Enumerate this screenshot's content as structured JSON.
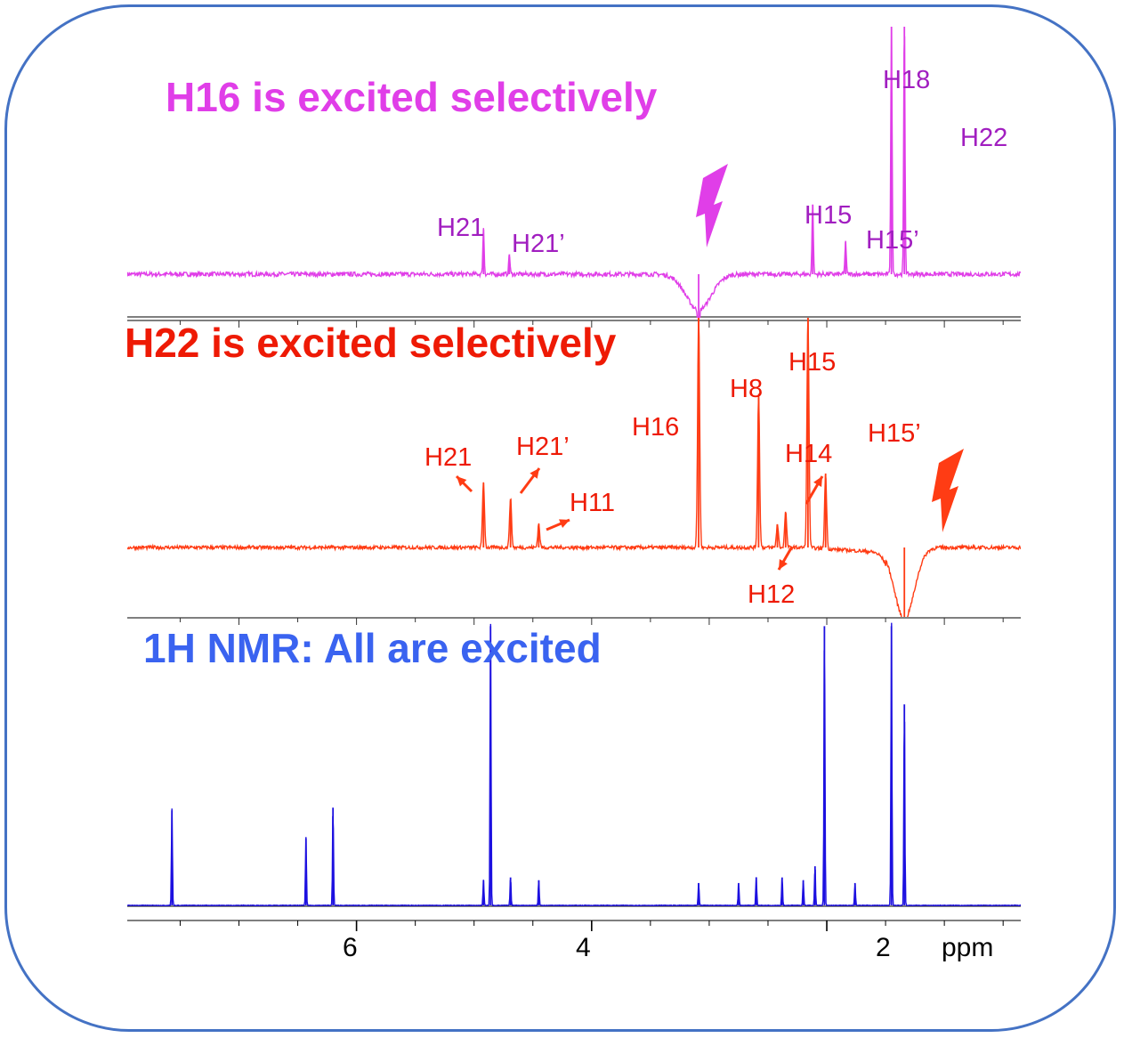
{
  "colors": {
    "frame": "#4472c4",
    "h16": "#e03ee8",
    "h16_label": "#a11ec0",
    "h22": "#ff3c14",
    "h22_label": "#ee1a05",
    "nmr": "#1d10e0",
    "nmr_title": "#3a63f0"
  },
  "panels": {
    "h16": {
      "title": "H16 is excited selectively",
      "labels": {
        "h18": "H18",
        "h22": "H22",
        "h15": "H15",
        "h15p": "H15’",
        "h21": "H21",
        "h21p": "H21’"
      }
    },
    "h22": {
      "title": "H22 is excited selectively",
      "labels": {
        "h16": "H16",
        "h8": "H8",
        "h15": "H15",
        "h15p": "H15’",
        "h14": "H14",
        "h21": "H21",
        "h21p": "H21’",
        "h11": "H11",
        "h12": "H12"
      }
    },
    "nmr": {
      "title": "1H NMR:  All are excited"
    }
  },
  "chart_data": {
    "type": "line",
    "xlabel": "ppm",
    "x_reversed": true,
    "xlim": [
      7.95,
      0.35
    ],
    "xticks": [
      {
        "value": 6,
        "label": "6"
      },
      {
        "value": 4,
        "label": "4"
      },
      {
        "value": 2,
        "label": "2"
      }
    ],
    "series": [
      {
        "name": "H16 is excited selectively",
        "peaks": [
          {
            "ppm": 1.45,
            "height": 1.0,
            "label": "H18"
          },
          {
            "ppm": 1.34,
            "height": 1.0,
            "label": "H22"
          },
          {
            "ppm": 2.12,
            "height": 0.28,
            "label": "H15"
          },
          {
            "ppm": 1.84,
            "height": 0.13,
            "label": "H15’"
          },
          {
            "ppm": 4.92,
            "height": 0.18,
            "label": "H21"
          },
          {
            "ppm": 4.7,
            "height": 0.08,
            "label": "H21’"
          },
          {
            "ppm": 3.09,
            "height": -0.22,
            "label": "irradiated H16"
          }
        ]
      },
      {
        "name": "H22 is excited selectively",
        "peaks": [
          {
            "ppm": 3.09,
            "height": 1.0,
            "label": "H16"
          },
          {
            "ppm": 2.58,
            "height": 0.65,
            "label": "H8"
          },
          {
            "ppm": 2.16,
            "height": 1.0,
            "label": "H15"
          },
          {
            "ppm": 2.01,
            "height": 0.32,
            "label": "H15’"
          },
          {
            "ppm": 2.35,
            "height": 0.15,
            "label": "H14"
          },
          {
            "ppm": 2.42,
            "height": 0.1,
            "label": "H12"
          },
          {
            "ppm": 4.92,
            "height": 0.28,
            "label": "H21"
          },
          {
            "ppm": 4.69,
            "height": 0.21,
            "label": "H21’"
          },
          {
            "ppm": 4.45,
            "height": 0.1,
            "label": "H11"
          },
          {
            "ppm": 1.34,
            "height": -0.35,
            "label": "irradiated H22"
          }
        ]
      },
      {
        "name": "1H NMR:  All are excited",
        "peaks": [
          {
            "ppm": 7.57,
            "height": 0.34
          },
          {
            "ppm": 6.43,
            "height": 0.24
          },
          {
            "ppm": 6.2,
            "height": 0.35
          },
          {
            "ppm": 4.92,
            "height": 0.09
          },
          {
            "ppm": 4.86,
            "height": 1.0
          },
          {
            "ppm": 4.69,
            "height": 0.1
          },
          {
            "ppm": 4.45,
            "height": 0.09
          },
          {
            "ppm": 3.09,
            "height": 0.08
          },
          {
            "ppm": 2.75,
            "height": 0.08
          },
          {
            "ppm": 2.6,
            "height": 0.1
          },
          {
            "ppm": 2.38,
            "height": 0.1
          },
          {
            "ppm": 2.2,
            "height": 0.09
          },
          {
            "ppm": 2.1,
            "height": 0.14
          },
          {
            "ppm": 2.02,
            "height": 1.0
          },
          {
            "ppm": 1.76,
            "height": 0.08
          },
          {
            "ppm": 1.45,
            "height": 1.0
          },
          {
            "ppm": 1.34,
            "height": 0.72
          }
        ]
      }
    ]
  }
}
